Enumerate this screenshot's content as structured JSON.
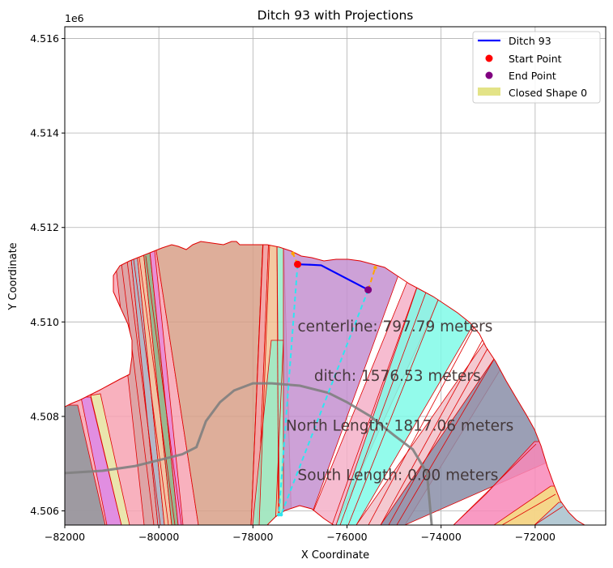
{
  "chart_data": {
    "type": "line",
    "title": "Ditch 93 with Projections",
    "xlabel": "X Coordinate",
    "ylabel": "Y Coordinate",
    "y_offset_label": "1e6",
    "xlim": [
      -82000,
      -70500
    ],
    "ylim": [
      4505700,
      4516250
    ],
    "grid": true,
    "x_ticks": [
      {
        "value": -82000,
        "label": "−82000"
      },
      {
        "value": -80000,
        "label": "−80000"
      },
      {
        "value": -78000,
        "label": "−78000"
      },
      {
        "value": -76000,
        "label": "−76000"
      },
      {
        "value": -74000,
        "label": "−74000"
      },
      {
        "value": -72000,
        "label": "−72000"
      }
    ],
    "y_ticks": [
      {
        "value": 4506000,
        "label": "4.506"
      },
      {
        "value": 4508000,
        "label": "4.508"
      },
      {
        "value": 4510000,
        "label": "4.510"
      },
      {
        "value": 4512000,
        "label": "4.512"
      },
      {
        "value": 4514000,
        "label": "4.514"
      },
      {
        "value": 4516000,
        "label": "4.516"
      }
    ],
    "series": [
      {
        "name": "Ditch 93",
        "color": "#0000ff",
        "x": [
          -77050,
          -76750,
          -76550,
          -75550
        ],
        "y": [
          4511220,
          4511210,
          4511200,
          4510680
        ]
      },
      {
        "name": "Start Point",
        "color": "#ff0000",
        "x": [
          -77050
        ],
        "y": [
          4511220
        ]
      },
      {
        "name": "End Point",
        "color": "#800080",
        "x": [
          -75550
        ],
        "y": [
          4510680
        ]
      },
      {
        "name": "Closed Shape 0",
        "color": "#dede72"
      }
    ],
    "projections": [
      {
        "color": "#2ee6f0",
        "x": [
          -77050,
          -77450
        ],
        "y": [
          4511220,
          4505920
        ]
      },
      {
        "color": "#2ee6f0",
        "x": [
          -75550,
          -77400
        ],
        "y": [
          4510680,
          4505920
        ]
      },
      {
        "color": "#ffa500",
        "x": [
          -77050,
          -77150
        ],
        "y": [
          4511220,
          4511450
        ]
      },
      {
        "color": "#ffa500",
        "x": [
          -75550,
          -75400
        ],
        "y": [
          4510680,
          4511150
        ]
      }
    ],
    "road": {
      "color": "#808080",
      "x": [
        -82000,
        -81200,
        -80500,
        -79900,
        -79500,
        -79200,
        -79000,
        -78700,
        -78400,
        -78000,
        -77600,
        -77000,
        -76400,
        -76000,
        -75500,
        -75000,
        -74600,
        -74300,
        -74200
      ],
      "y": [
        4506800,
        4506850,
        4506950,
        4507100,
        4507200,
        4507350,
        4507900,
        4508300,
        4508550,
        4508700,
        4508700,
        4508650,
        4508500,
        4508300,
        4508000,
        4507600,
        4507300,
        4506800,
        4505700
      ]
    },
    "annotations": [
      {
        "text": "centerline: 797.79 meters",
        "x": -77050,
        "y": 4509800
      },
      {
        "text": "ditch: 1576.53 meters",
        "x": -76700,
        "y": 4508750
      },
      {
        "text": "North Length: 1817.06 meters",
        "x": -77300,
        "y": 4507700
      },
      {
        "text": "South Length: 0.00 meters",
        "x": -77050,
        "y": 4506650
      }
    ],
    "legend_position": "top-right"
  }
}
